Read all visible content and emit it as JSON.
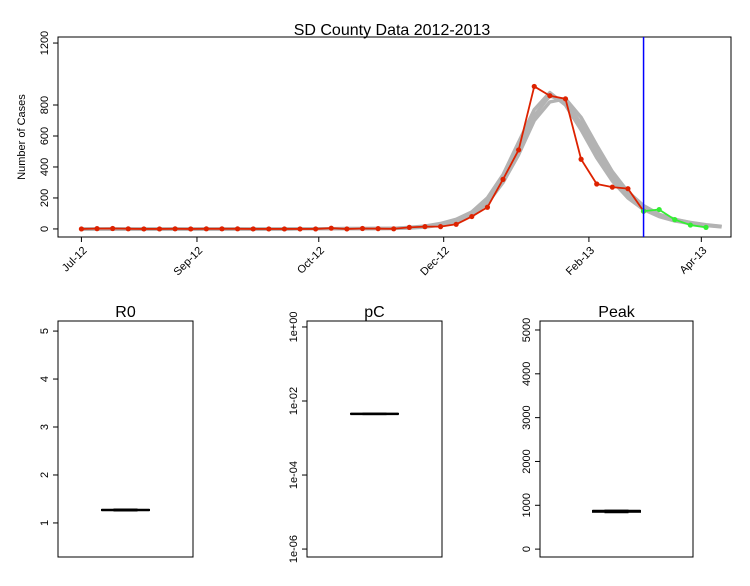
{
  "chart_data": [
    {
      "type": "line",
      "title": "SD County Data 2012-2013",
      "y_label": "Number of Cases",
      "x": [
        0,
        1,
        2,
        3,
        4,
        5,
        6,
        7,
        8,
        9,
        10,
        11,
        12,
        13,
        14,
        15,
        16,
        17,
        18,
        19,
        20,
        21,
        22,
        23,
        24,
        25,
        26,
        27,
        28,
        29,
        30,
        31,
        32,
        33,
        34,
        35,
        36,
        37,
        38,
        39,
        40,
        41
      ],
      "xlim": [
        -1.5,
        41.6
      ],
      "xticks": [
        {
          "value": 0,
          "label": "Jul-12"
        },
        {
          "value": 7.4,
          "label": "Sep-12"
        },
        {
          "value": 15.2,
          "label": "Oct-12"
        },
        {
          "value": 23.2,
          "label": "Dec-12"
        },
        {
          "value": 32.5,
          "label": "Feb-13"
        },
        {
          "value": 39.7,
          "label": "Apr-13"
        }
      ],
      "ylim": [
        -52,
        1239
      ],
      "yticks": [
        0,
        200,
        400,
        600,
        800,
        1200
      ],
      "vline": 36,
      "vline_color": "#0000ff",
      "series": [
        {
          "color": "#b3b3b3",
          "values": [
            0,
            0,
            0,
            0,
            0,
            0,
            0,
            0,
            0,
            0,
            0,
            0,
            0,
            0,
            1,
            1,
            1,
            2,
            2,
            3,
            4,
            6,
            12,
            25,
            48,
            90,
            165,
            300,
            480,
            700,
            820,
            840,
            720,
            540,
            370,
            240,
            150,
            95,
            62,
            42,
            27,
            17
          ]
        },
        {
          "color": "#b3b3b3",
          "values": [
            0,
            0,
            0,
            0,
            0,
            0,
            0,
            0,
            0,
            0,
            0,
            0,
            0,
            0,
            1,
            1,
            1,
            2,
            2,
            3,
            4,
            10,
            18,
            35,
            62,
            110,
            200,
            350,
            560,
            770,
            880,
            800,
            640,
            460,
            310,
            200,
            125,
            80,
            52,
            35,
            22,
            13
          ]
        },
        {
          "color": "#b3b3b3",
          "values": [
            0,
            0,
            0,
            0,
            0,
            0,
            0,
            0,
            0,
            0,
            0,
            0,
            0,
            0,
            1,
            1,
            1,
            2,
            2,
            3,
            4,
            8,
            15,
            30,
            55,
            100,
            180,
            320,
            520,
            730,
            860,
            820,
            680,
            500,
            340,
            220,
            140,
            90,
            60,
            40,
            25,
            15
          ]
        },
        {
          "color": "#dd2200",
          "markers": true,
          "values": [
            0,
            2,
            3,
            1,
            0,
            0,
            1,
            0,
            1,
            1,
            1,
            0,
            0,
            0,
            0,
            0,
            5,
            0,
            3,
            2,
            1,
            10,
            15,
            15,
            30,
            80,
            140,
            320,
            510,
            920,
            860,
            840,
            450,
            290,
            270,
            260,
            115,
            null,
            null,
            null,
            null,
            null
          ]
        },
        {
          "color": "#33ee33",
          "markers": true,
          "values": [
            null,
            null,
            null,
            null,
            null,
            null,
            null,
            null,
            null,
            null,
            null,
            null,
            null,
            null,
            null,
            null,
            null,
            null,
            null,
            null,
            null,
            null,
            null,
            null,
            null,
            null,
            null,
            null,
            null,
            null,
            null,
            null,
            null,
            null,
            null,
            null,
            115,
            125,
            60,
            25,
            10,
            null
          ]
        }
      ]
    },
    {
      "type": "box",
      "title": "R0",
      "ylim": [
        0.29,
        5.21
      ],
      "yticks": [
        1,
        2,
        3,
        4,
        5
      ],
      "stats": {
        "whisker_low": 1.25,
        "q1": 1.26,
        "median": 1.27,
        "q3": 1.28,
        "whisker_high": 1.29
      }
    },
    {
      "type": "box",
      "title": "pC",
      "log_y": true,
      "ylim": [
        6.1e-07,
        1.45
      ],
      "yticks": [
        {
          "value": 1,
          "label": "1e+00"
        },
        {
          "value": 0.01,
          "label": "1e-02"
        },
        {
          "value": 0.0001,
          "label": "1e-04"
        },
        {
          "value": 1e-06,
          "label": "1e-06"
        }
      ],
      "stats": {
        "whisker_low": 0.0043,
        "q1": 0.0044,
        "median": 0.0045,
        "q3": 0.0046,
        "whisker_high": 0.0047
      }
    },
    {
      "type": "box",
      "title": "Peak",
      "ylim": [
        -180,
        5205
      ],
      "yticks": [
        0,
        1000,
        2000,
        3000,
        4000,
        5000
      ],
      "stats": {
        "whisker_low": 830,
        "q1": 840,
        "median": 870,
        "q3": 880,
        "whisker_high": 890
      }
    }
  ]
}
